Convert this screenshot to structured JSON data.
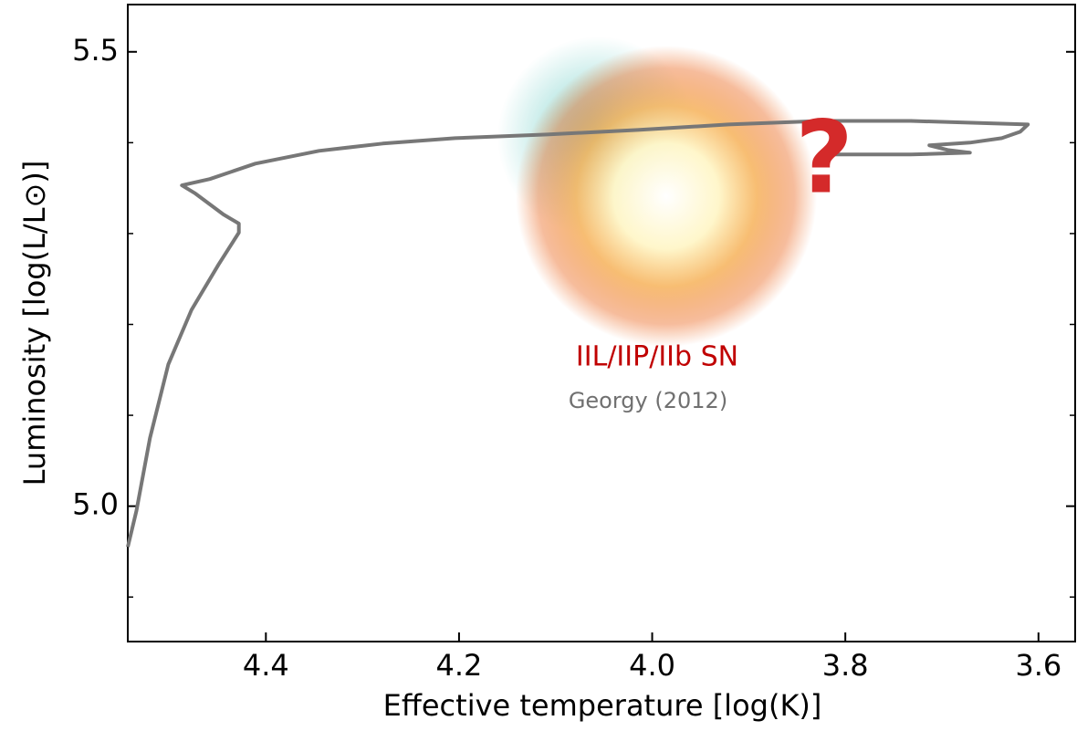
{
  "chart_data": {
    "type": "line",
    "xlabel": "Effective temperature [log(K)]",
    "ylabel": "Luminosity [log(L/L⊙)]",
    "xlim": [
      4.543,
      3.562
    ],
    "ylim": [
      4.851,
      5.552
    ],
    "xticks": [
      4.4,
      4.2,
      {
        "value": 4.0,
        "label": "4.0"
      },
      3.8,
      3.6
    ],
    "yticks": [
      5.5,
      {
        "value": 5.0,
        "label": "5.0"
      }
    ],
    "y_minor_ticks": [
      5.4,
      5.3,
      5.2,
      5.1,
      4.9
    ],
    "series": [
      {
        "color": "#777777",
        "x": [
          4.543,
          4.534,
          4.52,
          4.501,
          4.477,
          4.449,
          4.428,
          4.428,
          4.444,
          4.473,
          4.487,
          4.458,
          4.411,
          4.345,
          4.279,
          4.204,
          4.109,
          4.015,
          3.921,
          3.826,
          3.732,
          3.611,
          3.619,
          3.638,
          3.671,
          3.713,
          3.694,
          3.671,
          3.732,
          3.826
        ],
        "values": [
          4.955,
          4.995,
          5.075,
          5.156,
          5.216,
          5.266,
          5.301,
          5.311,
          5.321,
          5.344,
          5.353,
          5.36,
          5.377,
          5.391,
          5.399,
          5.405,
          5.409,
          5.414,
          5.42,
          5.424,
          5.424,
          5.42,
          5.412,
          5.405,
          5.4,
          5.397,
          5.392,
          5.389,
          5.387,
          5.387
        ]
      }
    ],
    "annotations": [
      {
        "text": "IIL/IIP/IIb SN",
        "color": "#c00000"
      },
      {
        "text": "Georgy (2012)",
        "color": "#707070"
      },
      {
        "text": "?",
        "color": "#d42a2a"
      }
    ]
  }
}
